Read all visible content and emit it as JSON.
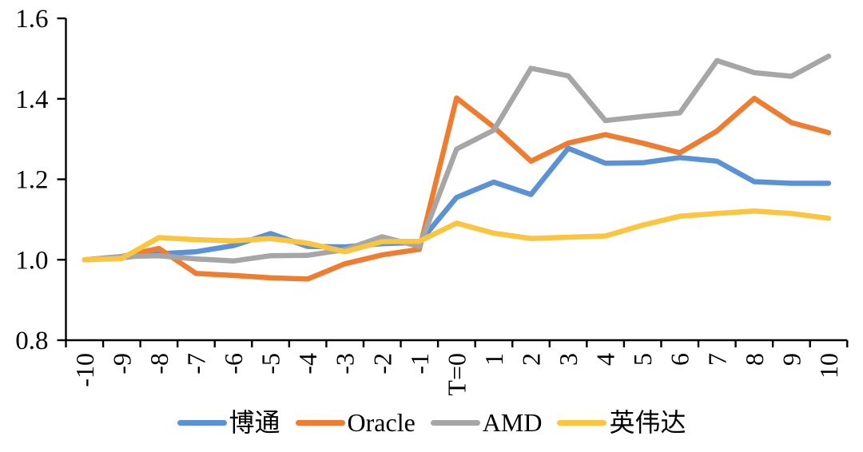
{
  "chart_data": {
    "type": "line",
    "title": "",
    "xlabel": "",
    "ylabel": "",
    "background": "#ffffff",
    "axis_color": "#000000",
    "grid": false,
    "legend_position": "bottom",
    "ylim": [
      0.8,
      1.6
    ],
    "yticks": [
      {
        "label": "0.8",
        "value": 0.8
      },
      {
        "label": "1.0",
        "value": 1.0
      },
      {
        "label": "1.2",
        "value": 1.2
      },
      {
        "label": "1.4",
        "value": 1.4
      },
      {
        "label": "1.6",
        "value": 1.6
      }
    ],
    "x_tick_label_rotation_deg": -90,
    "categories": [
      "-10",
      "-9",
      "-8",
      "-7",
      "-6",
      "-5",
      "-4",
      "-3",
      "-2",
      "-1",
      "T=0",
      "1",
      "2",
      "3",
      "4",
      "5",
      "6",
      "7",
      "8",
      "9",
      "10"
    ],
    "series": [
      {
        "name": "博通",
        "color": "#5B91D5",
        "values": [
          1.0,
          1.005,
          1.015,
          1.02,
          1.035,
          1.065,
          1.033,
          1.032,
          1.04,
          1.043,
          1.155,
          1.193,
          1.162,
          1.277,
          1.24,
          1.241,
          1.254,
          1.245,
          1.194,
          1.19,
          1.19
        ]
      },
      {
        "name": "Oracle",
        "color": "#ED7D31",
        "values": [
          1.0,
          1.008,
          1.028,
          0.966,
          0.961,
          0.955,
          0.952,
          0.99,
          1.012,
          1.026,
          1.402,
          1.33,
          1.245,
          1.29,
          1.311,
          1.29,
          1.266,
          1.32,
          1.401,
          1.341,
          1.316
        ]
      },
      {
        "name": "AMD",
        "color": "#A6A6A6",
        "values": [
          1.0,
          1.008,
          1.01,
          1.002,
          0.997,
          1.01,
          1.011,
          1.025,
          1.057,
          1.033,
          1.275,
          1.322,
          1.476,
          1.457,
          1.346,
          1.356,
          1.365,
          1.495,
          1.465,
          1.456,
          1.506
        ]
      },
      {
        "name": "英伟达",
        "color": "#FBC540",
        "values": [
          1.0,
          1.003,
          1.055,
          1.05,
          1.047,
          1.053,
          1.041,
          1.02,
          1.045,
          1.046,
          1.091,
          1.066,
          1.053,
          1.056,
          1.059,
          1.086,
          1.108,
          1.115,
          1.121,
          1.115,
          1.103
        ]
      }
    ]
  }
}
